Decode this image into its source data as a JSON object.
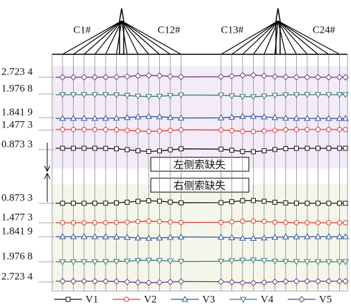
{
  "bridge": {
    "cable_labels": [
      "C1#",
      "C12#",
      "C13#",
      "C24#"
    ]
  },
  "panels": [
    {
      "caption": "左侧索缺失",
      "levels": [
        "2.723 4",
        "1.976 8",
        "1.841 9",
        "1.477 3",
        "0.873 3"
      ]
    },
    {
      "caption": "右侧索缺失",
      "levels": [
        "0.873 3",
        "1.477 3",
        "1.841 9",
        "1.976 8",
        "2.723 4"
      ]
    }
  ],
  "legend": [
    "V1",
    "V2",
    "V3",
    "V4",
    "V5"
  ]
}
